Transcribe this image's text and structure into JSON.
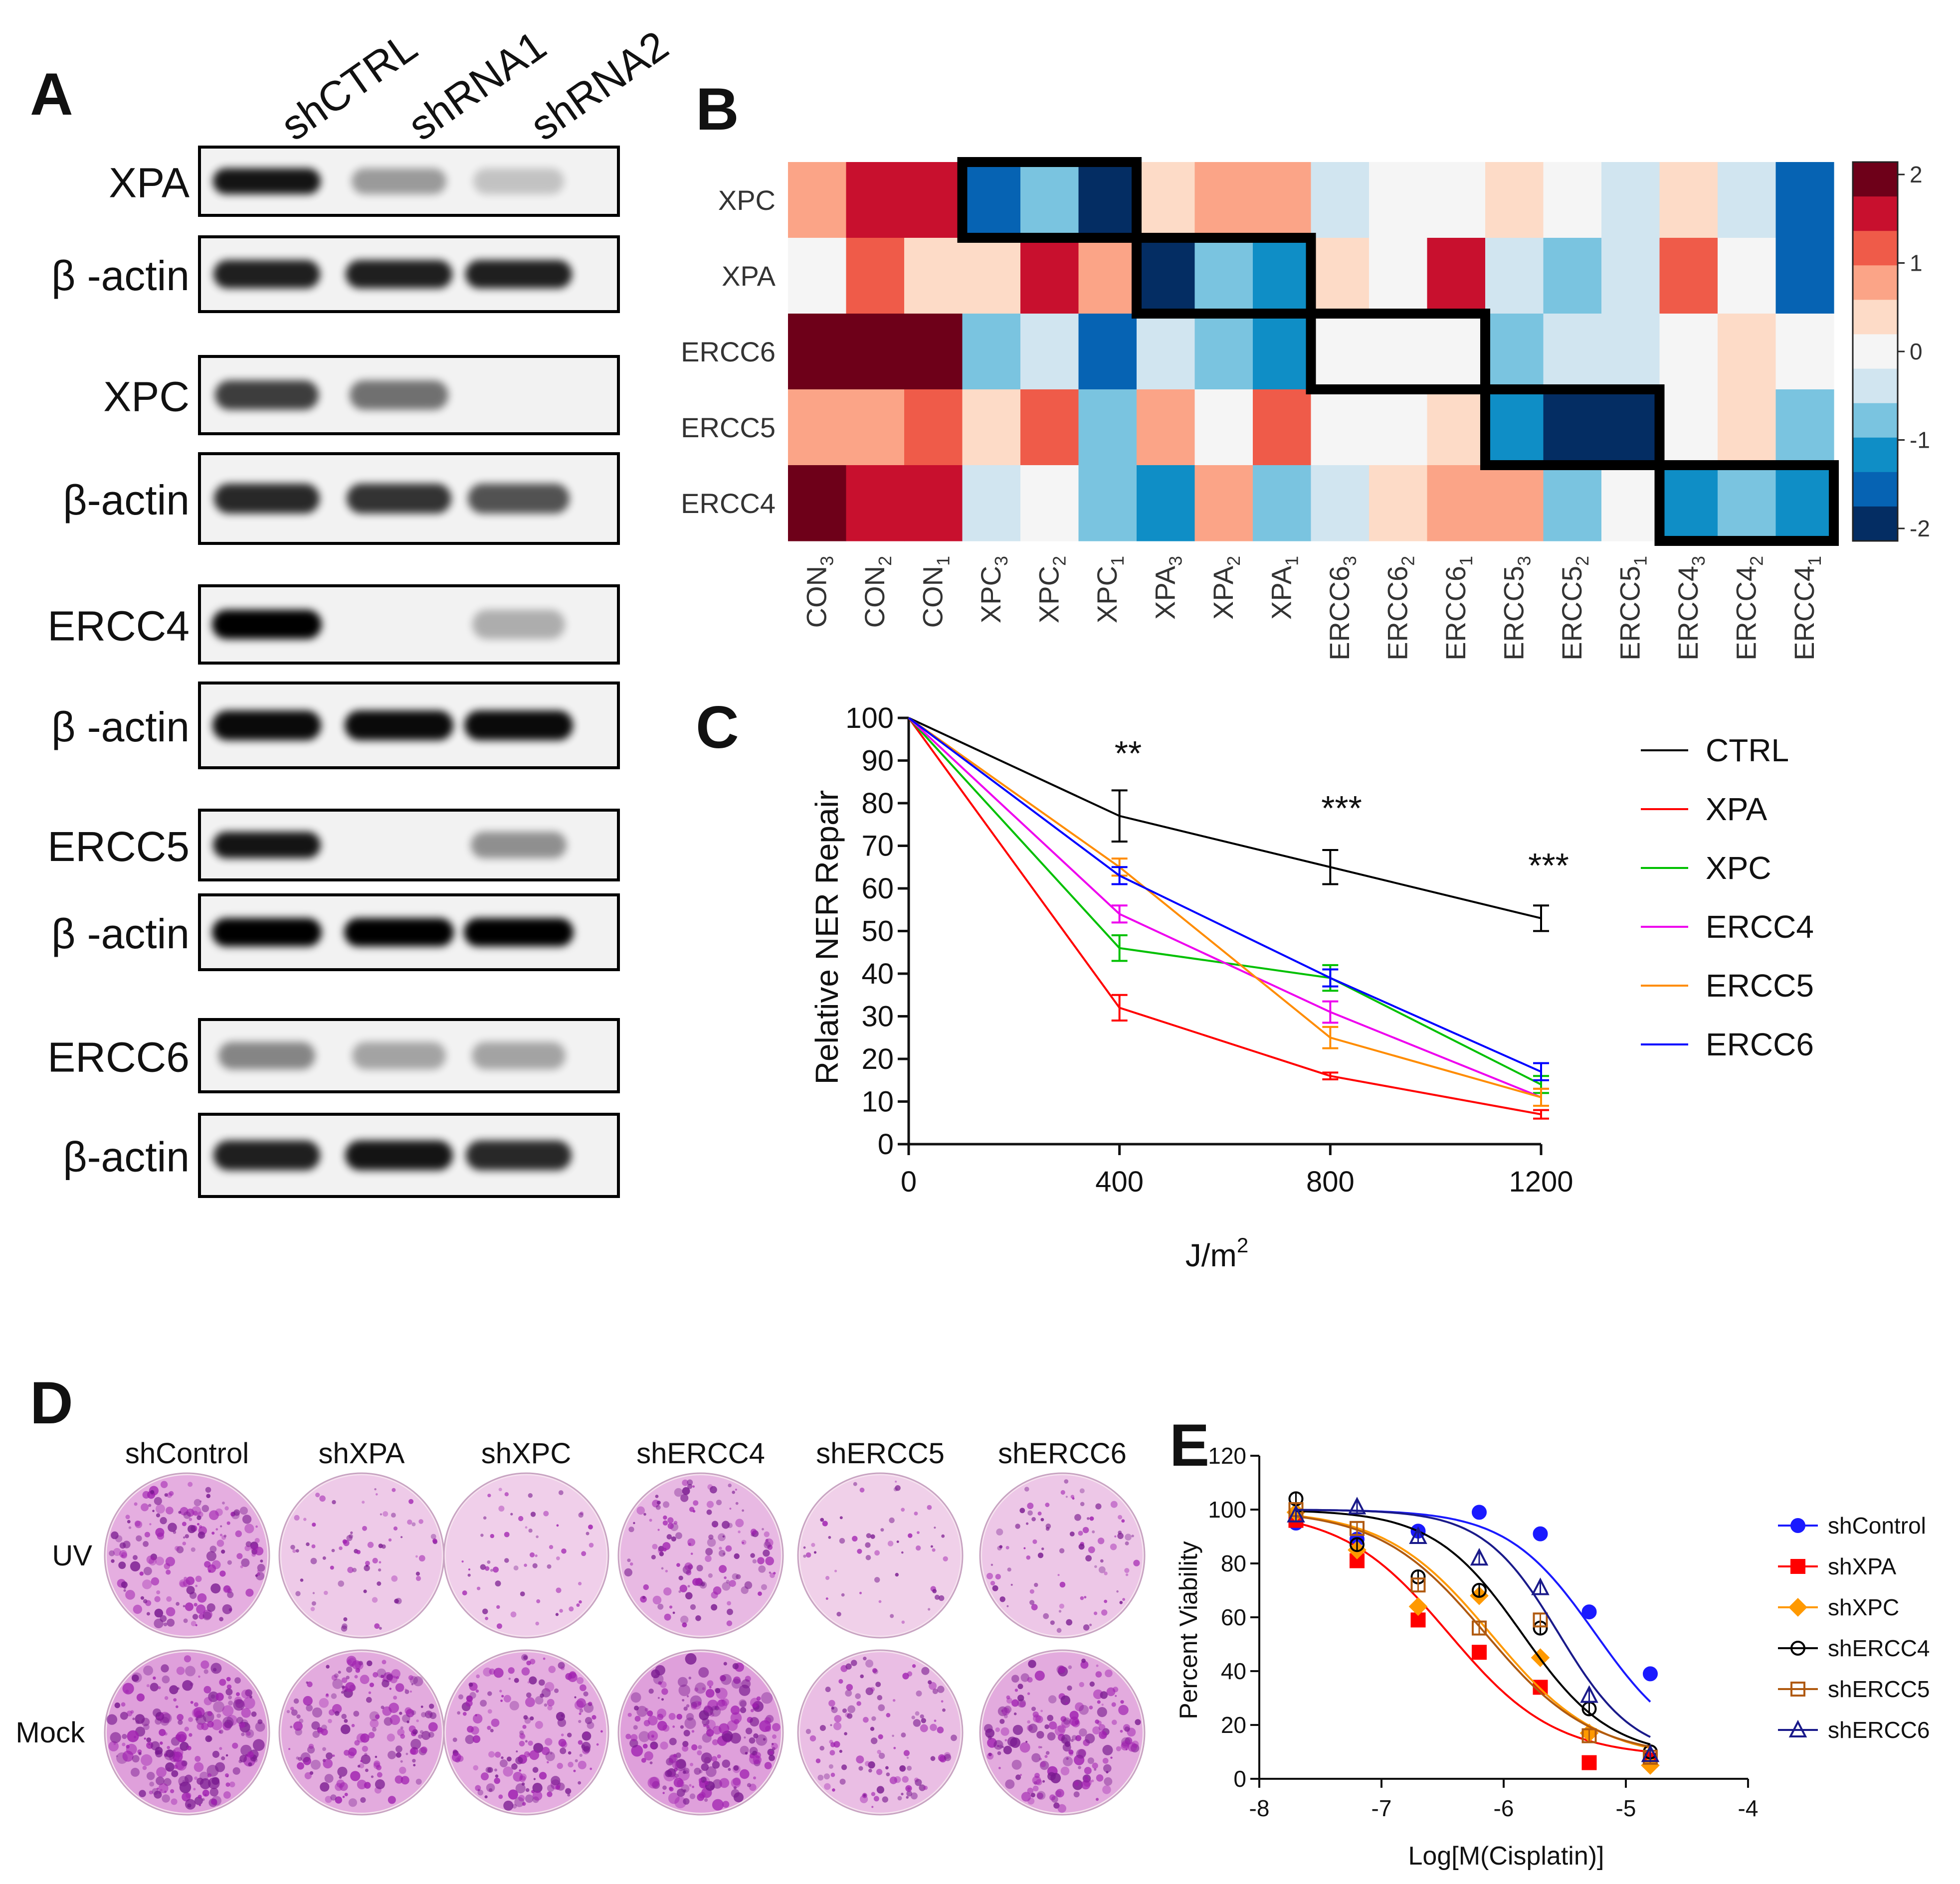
{
  "panels": {
    "A": {
      "label": "A",
      "lanes": [
        "shCTRL",
        "shRNA1",
        "shRNA2"
      ],
      "blots": [
        {
          "label": "XPA",
          "bands": [
            0.9,
            0.25,
            0.05
          ]
        },
        {
          "label": "β -actin",
          "bands": [
            0.85,
            0.85,
            0.85
          ]
        },
        {
          "label": "XPC",
          "bands": [
            0.7,
            0.45,
            0.0
          ]
        },
        {
          "label": "β-actin",
          "bands": [
            0.8,
            0.75,
            0.6
          ]
        },
        {
          "label": "ERCC4",
          "bands": [
            1.0,
            0.0,
            0.15
          ]
        },
        {
          "label": "β -actin",
          "bands": [
            0.95,
            0.95,
            0.95
          ]
        },
        {
          "label": "ERCC5",
          "bands": [
            0.9,
            0.0,
            0.3
          ]
        },
        {
          "label": "β -actin",
          "bands": [
            1.0,
            1.0,
            1.0
          ]
        },
        {
          "label": "ERCC6",
          "bands": [
            0.35,
            0.2,
            0.2
          ]
        },
        {
          "label": "β-actin",
          "bands": [
            0.85,
            0.9,
            0.8
          ]
        }
      ]
    },
    "B": {
      "label": "B",
      "rows": [
        "XPC",
        "XPA",
        "ERCC6",
        "ERCC5",
        "ERCC4"
      ],
      "columns": [
        {
          "base": "CON",
          "sub": "3"
        },
        {
          "base": "CON",
          "sub": "2"
        },
        {
          "base": "CON",
          "sub": "1"
        },
        {
          "base": "XPC",
          "sub": "3"
        },
        {
          "base": "XPC",
          "sub": "2"
        },
        {
          "base": "XPC",
          "sub": "1"
        },
        {
          "base": "XPA",
          "sub": "3"
        },
        {
          "base": "XPA",
          "sub": "2"
        },
        {
          "base": "XPA",
          "sub": "1"
        },
        {
          "base": "ERCC6",
          "sub": "3"
        },
        {
          "base": "ERCC6",
          "sub": "2"
        },
        {
          "base": "ERCC6",
          "sub": "1"
        },
        {
          "base": "ERCC5",
          "sub": "3"
        },
        {
          "base": "ERCC5",
          "sub": "2"
        },
        {
          "base": "ERCC5",
          "sub": "1"
        },
        {
          "base": "ERCC4",
          "sub": "3"
        },
        {
          "base": "ERCC4",
          "sub": "2"
        },
        {
          "base": "ERCC4",
          "sub": "1"
        }
      ],
      "values": [
        [
          0.75,
          1.75,
          1.75,
          -1.75,
          -0.75,
          -2.0,
          0.25,
          0.75,
          0.75,
          -0.25,
          0,
          0,
          0.25,
          0,
          -0.25,
          0.25,
          -0.25,
          -1.75
        ],
        [
          0,
          1.25,
          0.25,
          0.25,
          1.75,
          0.75,
          -2.0,
          -0.75,
          -1.25,
          0.25,
          0,
          1.75,
          -0.25,
          -0.75,
          -0.25,
          1.25,
          0,
          -1.75
        ],
        [
          2.0,
          2.0,
          2.0,
          -0.75,
          -0.25,
          -1.75,
          -0.25,
          -0.75,
          -1.25,
          0,
          0,
          0,
          -0.75,
          -0.25,
          -0.25,
          0,
          0.25,
          0
        ],
        [
          0.75,
          0.75,
          1.25,
          0.25,
          1.25,
          -0.75,
          0.75,
          0,
          1.25,
          0,
          0,
          0.25,
          -1.25,
          -2.0,
          -2.0,
          0,
          0.25,
          -0.75
        ],
        [
          2.0,
          1.75,
          1.75,
          -0.25,
          0,
          -0.75,
          -1.25,
          0.75,
          -0.75,
          -0.25,
          0.25,
          0.75,
          0.75,
          -0.75,
          0,
          -1.25,
          -0.75,
          -1.25
        ]
      ],
      "colorbar": {
        "ticks": [
          "2",
          "1",
          "0",
          "-1",
          "-2"
        ],
        "colors": [
          "#6e0019",
          "#c8102e",
          "#ef5b49",
          "#fba487",
          "#fddbc7",
          "#f5f5f5",
          "#d1e5f0",
          "#7ac4e0",
          "#0f8ec6",
          "#0663b3",
          "#042d63"
        ]
      }
    },
    "C": {
      "label": "C",
      "significance": [
        "**",
        "***",
        "***"
      ]
    },
    "D": {
      "label": "D",
      "columns": [
        "shControl",
        "shXPA",
        "shXPC",
        "shERCC4",
        "shERCC5",
        "shERCC6"
      ],
      "rows": [
        "UV",
        "Mock"
      ],
      "colony_density": [
        [
          0.75,
          0.22,
          0.15,
          0.55,
          0.12,
          0.3
        ],
        [
          1.0,
          0.8,
          0.75,
          1.0,
          0.45,
          0.8
        ]
      ]
    },
    "E": {
      "label": "E"
    }
  },
  "chart_data": [
    {
      "type": "line",
      "panel": "C",
      "x": [
        0,
        400,
        800,
        1200
      ],
      "xlabel": "J/m2",
      "xlabel_base": "J/m",
      "xlabel_sup": "2",
      "ylabel": "Relative NER Repair",
      "xlim": [
        0,
        1200
      ],
      "ylim": [
        0,
        100
      ],
      "xticks": [
        "0",
        "400",
        "800",
        "1200"
      ],
      "yticks": [
        "0",
        "10",
        "20",
        "30",
        "40",
        "50",
        "60",
        "70",
        "80",
        "90",
        "100"
      ],
      "series": [
        {
          "name": "CTRL",
          "color": "#000000",
          "values": [
            100,
            77,
            65,
            53
          ],
          "err": [
            0,
            6,
            4,
            3
          ]
        },
        {
          "name": "XPA",
          "color": "#ff0000",
          "values": [
            100,
            32,
            16,
            7
          ],
          "err": [
            0,
            3,
            0.8,
            1
          ]
        },
        {
          "name": "XPC",
          "color": "#00c000",
          "values": [
            100,
            46,
            39,
            14
          ],
          "err": [
            0,
            3,
            3,
            2
          ]
        },
        {
          "name": "ERCC4",
          "color": "#ee00ee",
          "values": [
            100,
            54,
            31,
            11
          ],
          "err": [
            0,
            2,
            2.5,
            2
          ]
        },
        {
          "name": "ERCC5",
          "color": "#ff8c00",
          "values": [
            100,
            65,
            25,
            11
          ],
          "err": [
            0,
            2,
            2.5,
            2
          ]
        },
        {
          "name": "ERCC6",
          "color": "#0000ff",
          "values": [
            100,
            63,
            39,
            17
          ],
          "err": [
            0,
            2,
            2,
            2
          ]
        }
      ]
    },
    {
      "type": "scatter",
      "panel": "E",
      "xlabel": "Log[M(Cisplatin)]",
      "ylabel": "Percent Viability",
      "xlim": [
        -8,
        -4
      ],
      "ylim": [
        0,
        120
      ],
      "xticks": [
        "-8",
        "-7",
        "-6",
        "-5",
        "-4"
      ],
      "yticks": [
        "0",
        "20",
        "40",
        "60",
        "80",
        "100",
        "120"
      ],
      "x": [
        -7.7,
        -7.2,
        -6.7,
        -6.2,
        -5.7,
        -5.3,
        -4.8
      ],
      "series": [
        {
          "name": "shControl",
          "color": "#1a1aff",
          "marker": "circle-filled",
          "values": [
            95,
            89,
            92,
            99,
            91,
            62,
            39
          ],
          "fit": {
            "ic50": -5.25,
            "hill": 1.2,
            "top": 100,
            "bottom": 8
          }
        },
        {
          "name": "shXPA",
          "color": "#ff0000",
          "marker": "square-filled",
          "values": [
            96,
            81,
            59,
            47,
            34,
            6,
            7
          ],
          "fit": {
            "ic50": -6.45,
            "hill": 1.0,
            "top": 100,
            "bottom": 8
          }
        },
        {
          "name": "shXPC",
          "color": "#ff9900",
          "marker": "diamond-filled",
          "values": [
            99,
            85,
            64,
            68,
            45,
            17,
            5
          ],
          "fit": {
            "ic50": -6.1,
            "hill": 1.0,
            "top": 100,
            "bottom": 7
          }
        },
        {
          "name": "shERCC4",
          "color": "#000000",
          "marker": "circle-open",
          "values": [
            104,
            87,
            75,
            70,
            56,
            26,
            10
          ],
          "fit": {
            "ic50": -5.85,
            "hill": 1.2,
            "top": 100,
            "bottom": 8
          }
        },
        {
          "name": "shERCC5",
          "color": "#b05a10",
          "marker": "square-open",
          "values": [
            100,
            93,
            72,
            56,
            59,
            16,
            8
          ],
          "fit": {
            "ic50": -6.15,
            "hill": 1.0,
            "top": 100,
            "bottom": 8
          }
        },
        {
          "name": "shERCC6",
          "color": "#1a1a8a",
          "marker": "triangle-open",
          "values": [
            98,
            101,
            90,
            82,
            71,
            31,
            9
          ],
          "fit": {
            "ic50": -5.55,
            "hill": 1.4,
            "top": 100,
            "bottom": 8
          }
        }
      ]
    }
  ]
}
